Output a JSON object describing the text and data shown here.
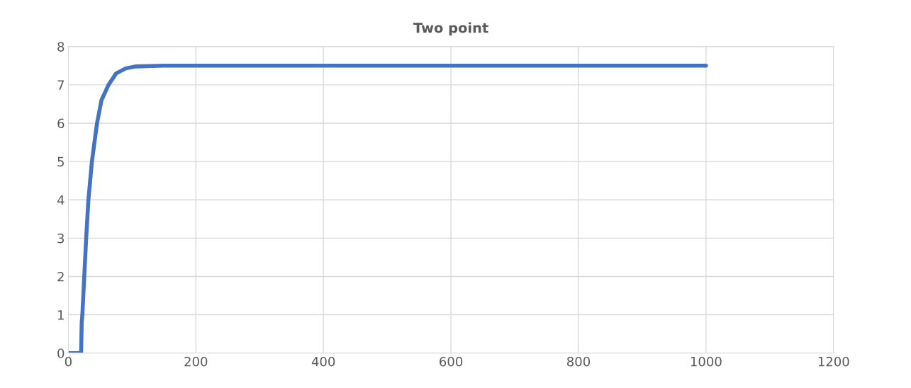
{
  "chart_data": {
    "type": "line",
    "title": "Two point",
    "series": [
      {
        "color": "#4472c4",
        "x": [
          0,
          20,
          21,
          22,
          25,
          28,
          31.5,
          37,
          45,
          52,
          63,
          75,
          90,
          105,
          150,
          1000
        ],
        "values": [
          0,
          0,
          0.8,
          1,
          2,
          3,
          4,
          5,
          6,
          6.6,
          7,
          7.3,
          7.43,
          7.48,
          7.5,
          7.5
        ]
      }
    ],
    "xlim": [
      0,
      1200
    ],
    "xticks": [
      0,
      200,
      400,
      600,
      800,
      1000,
      1200
    ],
    "ylim": [
      0,
      8
    ],
    "yticks": [
      0,
      1,
      2,
      3,
      4,
      5,
      6,
      7,
      8
    ],
    "grid": true,
    "legend": false,
    "marker": "none",
    "line_style": "solid"
  }
}
